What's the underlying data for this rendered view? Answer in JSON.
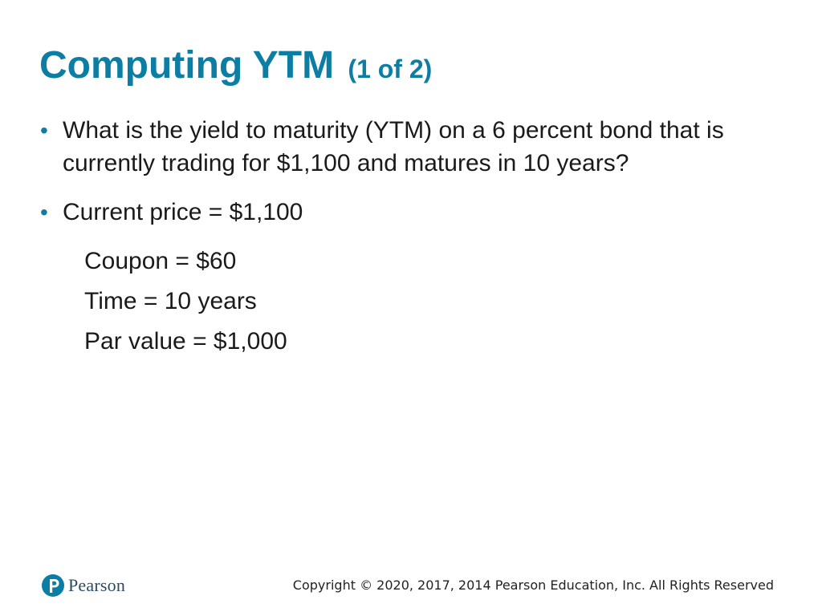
{
  "slide": {
    "title_main": "Computing YTM",
    "title_sub": "(1 of 2)",
    "bullets": [
      "What is the yield to maturity (YTM) on a 6 percent bond that is currently trading for $1,100 and matures in 10 years?",
      "Current price = $1,100"
    ],
    "sub_lines": [
      "Coupon = $60",
      "Time = 10 years",
      "Par value = $1,000"
    ]
  },
  "footer": {
    "logo_text": "Pearson",
    "copyright": "Copyright © 2020, 2017, 2014 Pearson Education, Inc. All Rights Reserved"
  },
  "colors": {
    "accent": "#0d7ea3",
    "text": "#1a1a1a"
  }
}
